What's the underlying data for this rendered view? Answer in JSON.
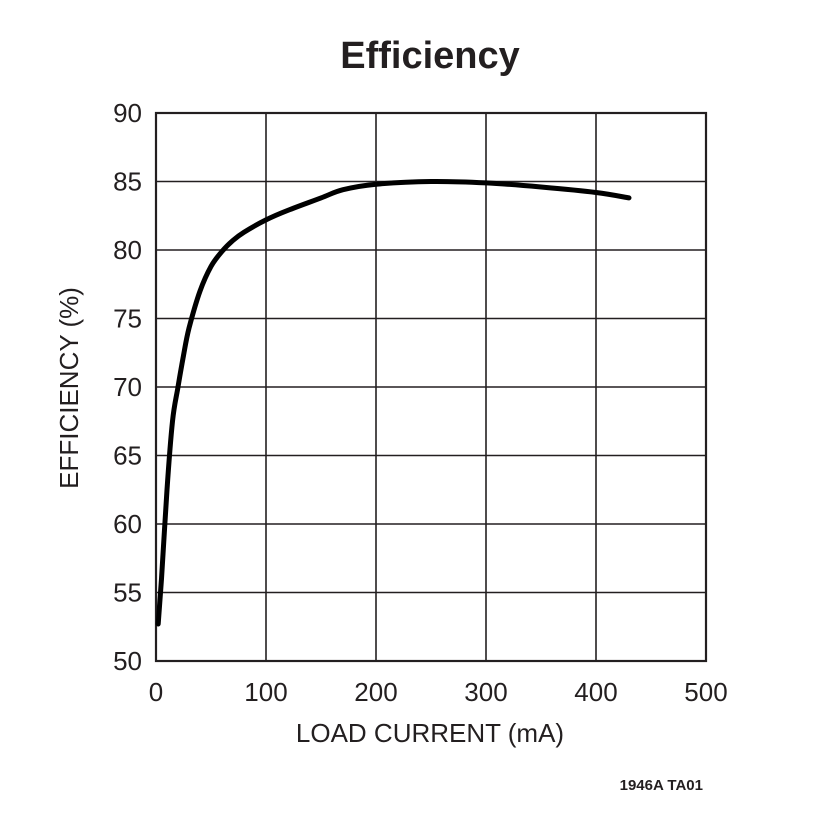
{
  "chart_data": {
    "type": "line",
    "title": "Efficiency",
    "xlabel": "LOAD CURRENT (mA)",
    "ylabel": "EFFICIENCY (%)",
    "xlim": [
      0,
      500
    ],
    "ylim": [
      50,
      90
    ],
    "xticks": [
      0,
      100,
      200,
      300,
      400,
      500
    ],
    "yticks": [
      50,
      55,
      60,
      65,
      70,
      75,
      80,
      85,
      90
    ],
    "grid": true,
    "series": [
      {
        "color": "#000000",
        "x": [
          2,
          5,
          10,
          15,
          20,
          25,
          30,
          40,
          50,
          60,
          70,
          80,
          100,
          120,
          150,
          170,
          200,
          250,
          300,
          350,
          400,
          430
        ],
        "y": [
          52.7,
          56,
          62.5,
          67.5,
          70,
          72.3,
          74.3,
          77,
          78.8,
          79.9,
          80.7,
          81.3,
          82.2,
          82.9,
          83.8,
          84.4,
          84.8,
          85.0,
          84.9,
          84.6,
          84.2,
          83.8
        ]
      }
    ]
  },
  "footnote": "1946A TA01"
}
